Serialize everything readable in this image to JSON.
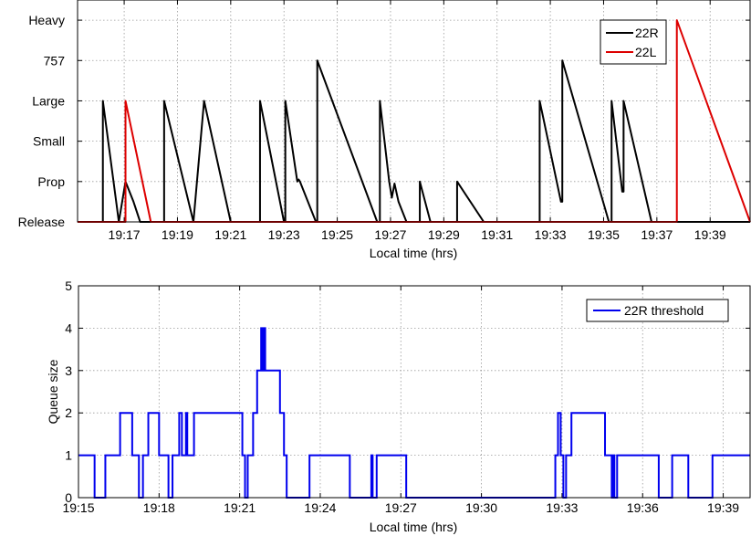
{
  "chart_data": [
    {
      "type": "line",
      "title": "",
      "xlabel": "Local time (hrs)",
      "ylabel": "",
      "x_unit": "minutes after 19:00",
      "xlim": [
        15.25,
        40.5
      ],
      "x_ticks": [
        {
          "value": 17,
          "label": "19:17"
        },
        {
          "value": 19,
          "label": "19:19"
        },
        {
          "value": 21,
          "label": "19:21"
        },
        {
          "value": 23,
          "label": "19:23"
        },
        {
          "value": 25,
          "label": "19:25"
        },
        {
          "value": 27,
          "label": "19:27"
        },
        {
          "value": 29,
          "label": "19:29"
        },
        {
          "value": 31,
          "label": "19:31"
        },
        {
          "value": 33,
          "label": "19:33"
        },
        {
          "value": 35,
          "label": "19:35"
        },
        {
          "value": 37,
          "label": "19:37"
        },
        {
          "value": 39,
          "label": "19:39"
        }
      ],
      "y_categories": [
        "Release",
        "Prop",
        "Small",
        "Large",
        "757",
        "Heavy"
      ],
      "ylim": [
        0,
        5.5
      ],
      "grid": true,
      "legend": "top-right",
      "series": [
        {
          "name": "22R",
          "color": "#000000",
          "points": [
            [
              15.25,
              0
            ],
            [
              16.2,
              0
            ],
            [
              16.2,
              3
            ],
            [
              16.8,
              0
            ],
            [
              16.8,
              0
            ],
            [
              17.05,
              1
            ],
            [
              17.35,
              0.5
            ],
            [
              17.6,
              0
            ],
            [
              18.5,
              0
            ],
            [
              18.5,
              3
            ],
            [
              19.6,
              0
            ],
            [
              19.6,
              0
            ],
            [
              20.0,
              3
            ],
            [
              21.0,
              0
            ],
            [
              22.1,
              0
            ],
            [
              22.1,
              3
            ],
            [
              23.0,
              0
            ],
            [
              23.05,
              0
            ],
            [
              23.05,
              3
            ],
            [
              23.5,
              1
            ],
            [
              23.55,
              1.05
            ],
            [
              23.6,
              1
            ],
            [
              24.2,
              0
            ],
            [
              24.25,
              0
            ],
            [
              24.25,
              4
            ],
            [
              26.5,
              0
            ],
            [
              26.6,
              0
            ],
            [
              26.6,
              3
            ],
            [
              26.95,
              1
            ],
            [
              27.05,
              0.6
            ],
            [
              27.15,
              0.95
            ],
            [
              27.3,
              0.5
            ],
            [
              27.6,
              0
            ],
            [
              28.1,
              0
            ],
            [
              28.1,
              1
            ],
            [
              28.5,
              0
            ],
            [
              29.5,
              0
            ],
            [
              29.5,
              1
            ],
            [
              30.5,
              0
            ],
            [
              32.6,
              0
            ],
            [
              32.6,
              3
            ],
            [
              33.4,
              0.5
            ],
            [
              33.45,
              0.5
            ],
            [
              33.45,
              4
            ],
            [
              35.2,
              0
            ],
            [
              35.3,
              0
            ],
            [
              35.3,
              3
            ],
            [
              35.7,
              0.75
            ],
            [
              35.75,
              0.75
            ],
            [
              35.75,
              3
            ],
            [
              36.8,
              0
            ],
            [
              40.5,
              0
            ]
          ]
        },
        {
          "name": "22L",
          "color": "#dd0000",
          "points": [
            [
              15.25,
              0
            ],
            [
              17.05,
              0
            ],
            [
              17.05,
              3
            ],
            [
              18.0,
              0
            ],
            [
              37.75,
              0
            ],
            [
              37.75,
              5
            ],
            [
              40.5,
              0
            ]
          ]
        }
      ]
    },
    {
      "type": "line",
      "title": "",
      "xlabel": "Local time (hrs)",
      "ylabel": "Queue size",
      "x_unit": "minutes after 19:00",
      "xlim": [
        15,
        40
      ],
      "x_ticks": [
        {
          "value": 15,
          "label": "19:15"
        },
        {
          "value": 18,
          "label": "19:18"
        },
        {
          "value": 21,
          "label": "19:21"
        },
        {
          "value": 24,
          "label": "19:24"
        },
        {
          "value": 27,
          "label": "19:27"
        },
        {
          "value": 30,
          "label": "19:30"
        },
        {
          "value": 33,
          "label": "19:33"
        },
        {
          "value": 36,
          "label": "19:36"
        },
        {
          "value": 39,
          "label": "19:39"
        }
      ],
      "y_ticks": [
        0,
        1,
        2,
        3,
        4,
        5
      ],
      "ylim": [
        0,
        5
      ],
      "grid": true,
      "legend": "top-right",
      "series": [
        {
          "name": "22R threshold",
          "color": "#0000ee",
          "steps": [
            [
              15.0,
              1
            ],
            [
              15.6,
              0
            ],
            [
              16.0,
              1
            ],
            [
              16.55,
              2
            ],
            [
              17.0,
              1
            ],
            [
              17.25,
              0
            ],
            [
              17.4,
              1
            ],
            [
              17.6,
              2
            ],
            [
              18.0,
              1
            ],
            [
              18.35,
              0
            ],
            [
              18.5,
              1
            ],
            [
              18.75,
              2
            ],
            [
              18.85,
              1
            ],
            [
              19.0,
              2
            ],
            [
              19.05,
              1
            ],
            [
              19.3,
              2
            ],
            [
              21.1,
              1
            ],
            [
              21.2,
              0
            ],
            [
              21.3,
              1
            ],
            [
              21.5,
              2
            ],
            [
              21.65,
              3
            ],
            [
              21.8,
              4
            ],
            [
              21.85,
              3
            ],
            [
              21.9,
              4
            ],
            [
              21.95,
              3
            ],
            [
              22.5,
              2
            ],
            [
              22.65,
              1
            ],
            [
              22.75,
              0
            ],
            [
              23.6,
              1
            ],
            [
              25.1,
              0
            ],
            [
              25.9,
              1
            ],
            [
              25.95,
              0
            ],
            [
              26.1,
              1
            ],
            [
              27.2,
              0
            ],
            [
              32.75,
              1
            ],
            [
              32.85,
              2
            ],
            [
              32.95,
              1
            ],
            [
              33.05,
              0
            ],
            [
              33.15,
              1
            ],
            [
              33.35,
              2
            ],
            [
              34.6,
              1
            ],
            [
              34.85,
              0
            ],
            [
              34.9,
              1
            ],
            [
              34.95,
              0
            ],
            [
              35.05,
              1
            ],
            [
              36.6,
              0
            ],
            [
              37.1,
              1
            ],
            [
              37.7,
              0
            ],
            [
              38.6,
              1
            ],
            [
              40.0,
              1
            ]
          ]
        }
      ]
    }
  ]
}
